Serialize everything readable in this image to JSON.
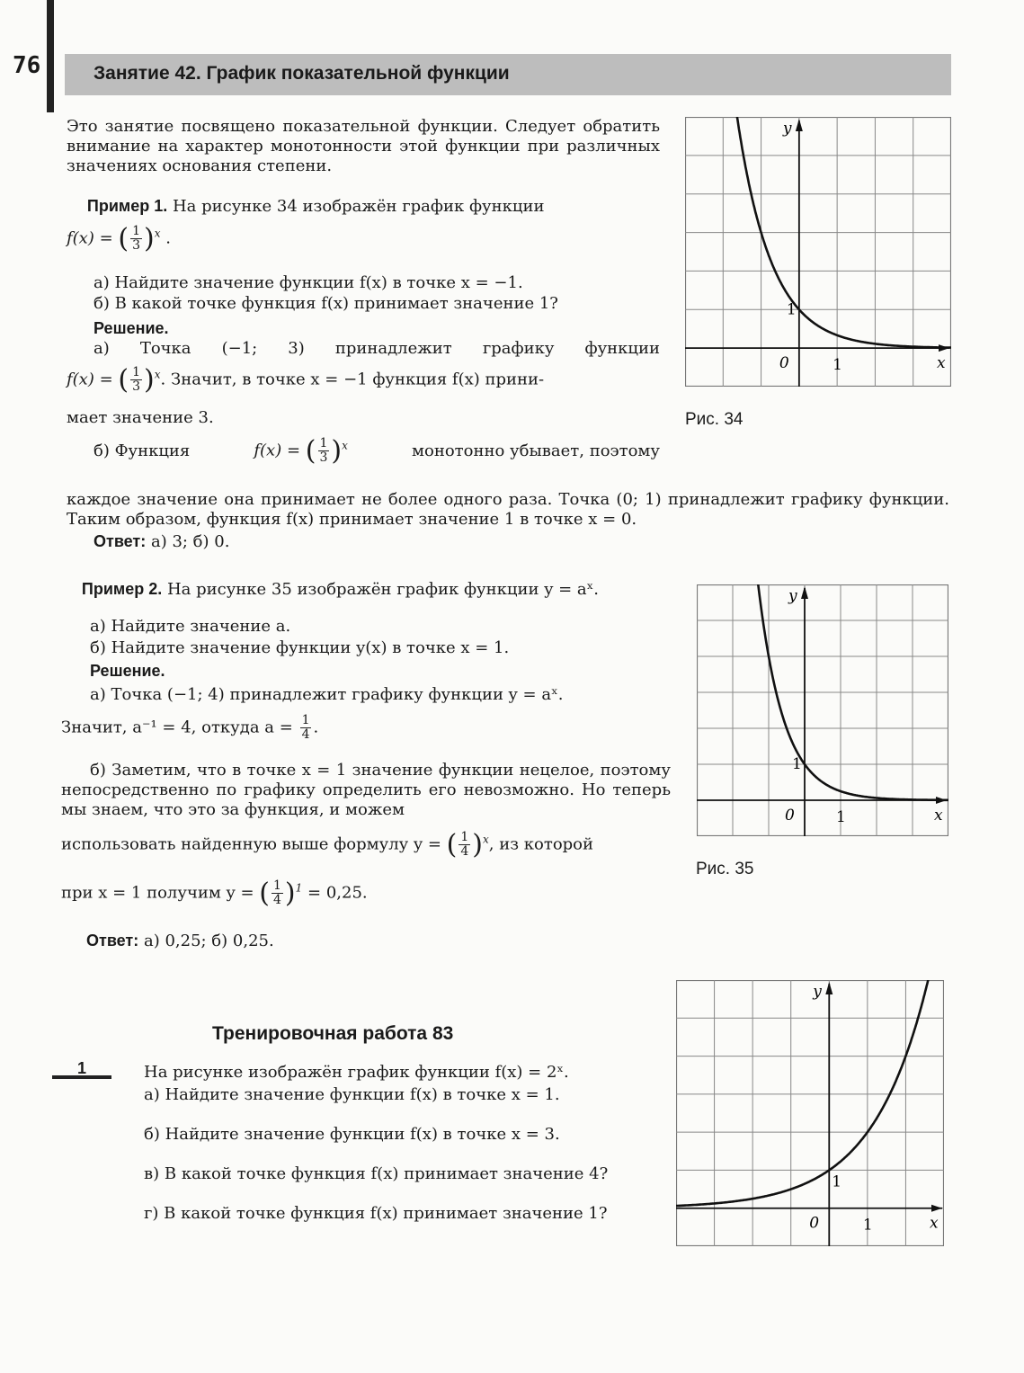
{
  "page_number": "76",
  "lesson_title": "Занятие 42. График показательной функции",
  "intro": "Это занятие посвящено показательной функции. Следует обратить внимание на характер монотонности этой функции при различных значениях основания степени.",
  "example1": {
    "heading": "Пример 1.",
    "text": "На рисунке 34 изображён график функции",
    "formula_prefix": "f(x) =",
    "num": "1",
    "den": "3",
    "exp": "x",
    "q_a": "а) Найдите значение функции f(x) в точке x = −1.",
    "q_b": "б) В какой точке функция f(x) принимает значение 1?",
    "solution_heading": "Решение.",
    "sol_a1": "а) Точка (−1; 3) принадлежит графику функции",
    "sol_a2": ". Значит, в точке x = −1 функция f(x) прини-",
    "sol_a3": "мает значение 3.",
    "sol_b1": "б) Функция",
    "sol_b2": "монотонно убывает, поэтому",
    "sol_b3": "каждое значение она принимает не более одного раза. Точка (0; 1) принадлежит графику функции. Таким образом, функция f(x) принимает значение 1 в точке x = 0.",
    "answer_label": "Ответ:",
    "answer": "а) 3; б) 0."
  },
  "example2": {
    "heading": "Пример 2.",
    "text": "На рисунке 35 изображён график функции y = aˣ.",
    "q_a": "а) Найдите значение a.",
    "q_b": "б) Найдите значение функции y(x) в точке x = 1.",
    "solution_heading": "Решение.",
    "sol_a1": "а) Точка (−1; 4) принадлежит графику функции y = aˣ.",
    "sol_a2": "Значит, a⁻¹ = 4, откуда a =",
    "a_num": "1",
    "a_den": "4",
    "sol_b1": "б) Заметим, что в точке x = 1 значение функции нецелое, поэтому непосредственно по графику определить его невозможно. Но теперь мы знаем, что это за функция, и можем",
    "sol_b2": "использовать найденную выше формулу y =",
    "sol_b3": ", из которой",
    "sol_b4": "при x = 1 получим y =",
    "sol_b5": "= 0,25.",
    "exp1": "1",
    "answer_label": "Ответ:",
    "answer": "а) 0,25; б) 0,25."
  },
  "training": {
    "title": "Тренировочная работа 83",
    "task_number": "1",
    "task": "На рисунке изображён график функции f(x) = 2ˣ.",
    "a": "а) Найдите значение функции f(x) в точке x = 1.",
    "b": "б) Найдите значение функции f(x) в точке x = 3.",
    "c": "в) В какой точке функция f(x) принимает значение 4?",
    "d": "г) В какой точке функция f(x) принимает значение 1?"
  },
  "figures": [
    {
      "caption": "Рис. 34",
      "base": 0.3333,
      "xlim": [
        -3,
        4
      ],
      "ylim": [
        -1,
        6
      ],
      "x_label": "x",
      "y_label": "y",
      "origin_label": "0",
      "x_tick": "1",
      "y_tick": "1"
    },
    {
      "caption": "Рис. 35",
      "base": 0.25,
      "xlim": [
        -3,
        4
      ],
      "ylim": [
        -1,
        6
      ],
      "x_label": "x",
      "y_label": "y",
      "origin_label": "0",
      "x_tick": "1",
      "y_tick": "1"
    },
    {
      "caption": "",
      "base": 2,
      "xlim": [
        -4,
        3
      ],
      "ylim": [
        -1,
        6
      ],
      "x_label": "x",
      "y_label": "y",
      "origin_label": "0",
      "x_tick": "1",
      "y_tick": "1"
    }
  ]
}
